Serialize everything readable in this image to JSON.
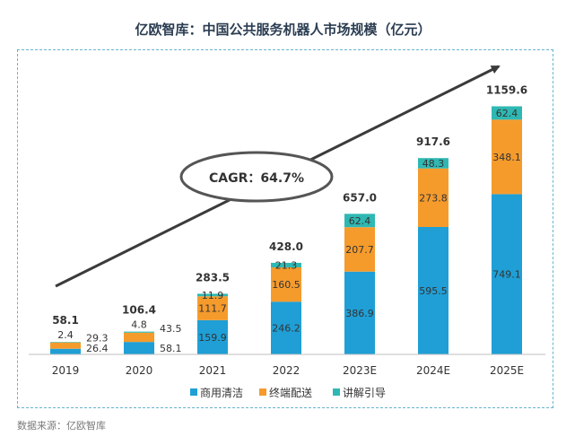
{
  "chart_data": {
    "type": "bar",
    "stacked": true,
    "title": "亿欧智库：中国公共服务机器人市场规模（亿元）",
    "categories": [
      "2019",
      "2020",
      "2021",
      "2022",
      "2023E",
      "2024E",
      "2025E"
    ],
    "series": [
      {
        "name": "商用清洁",
        "color": "#1f9fd6",
        "values": [
          26.4,
          58.1,
          159.9,
          246.2,
          386.9,
          595.5,
          749.1
        ]
      },
      {
        "name": "终端配送",
        "color": "#f59b2c",
        "values": [
          29.3,
          43.5,
          111.7,
          160.5,
          207.7,
          273.8,
          348.1
        ]
      },
      {
        "name": "讲解引导",
        "color": "#2fb8b3",
        "values": [
          2.4,
          4.8,
          11.9,
          21.3,
          62.4,
          48.3,
          62.4
        ]
      }
    ],
    "series_labels": [
      [
        "26.4",
        "58.1",
        "159.9",
        "246.2",
        "386.9",
        "595.5",
        "749.1"
      ],
      [
        "29.3",
        "43.5",
        "111.7",
        "160.5",
        "207.7",
        "273.8",
        "348.1"
      ],
      [
        "2.4",
        "4.8",
        "11.9",
        "21.3",
        "62.4",
        "48.3",
        "62.4"
      ]
    ],
    "totals": [
      58.1,
      106.4,
      283.5,
      428.0,
      657.0,
      917.6,
      1159.6
    ],
    "total_labels": [
      "58.1",
      "106.4",
      "283.5",
      "428.0",
      "657.0",
      "917.6",
      "1159.6"
    ],
    "ylim": [
      0,
      1300
    ],
    "legend_position": "bottom",
    "annotation": "CAGR：64.7%"
  },
  "source": "数据来源：亿欧智库"
}
